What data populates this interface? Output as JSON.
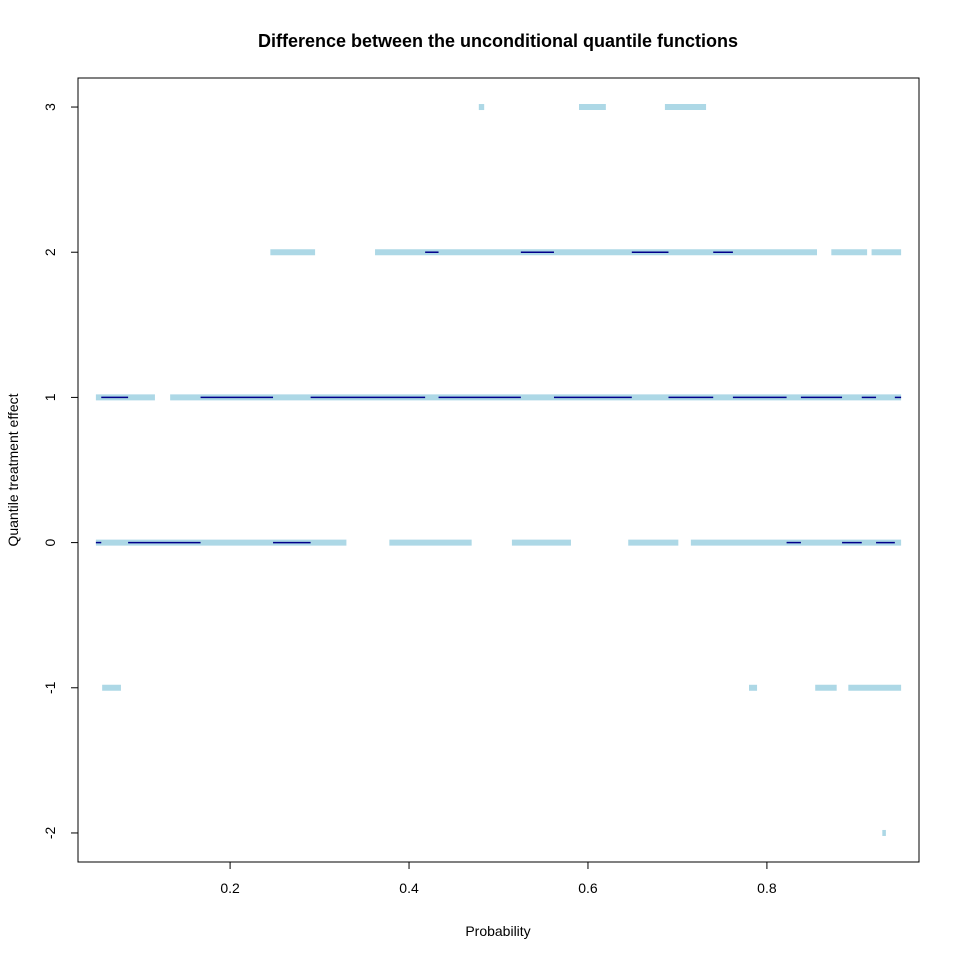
{
  "chart_data": {
    "type": "line",
    "title": "Difference between the unconditional quantile functions",
    "xlabel": "Probability",
    "ylabel": "Quantile treatment effect",
    "xlim": [
      0.03,
      0.97
    ],
    "ylim": [
      -2.2,
      3.2
    ],
    "x_ticks": [
      "0.2",
      "0.4",
      "0.6",
      "0.8"
    ],
    "x_tick_values": [
      0.2,
      0.4,
      0.6,
      0.8
    ],
    "y_ticks": [
      "-2",
      "-1",
      "0",
      "1",
      "2",
      "3"
    ],
    "y_tick_values": [
      -2,
      -1,
      0,
      1,
      2,
      3
    ],
    "grid": false,
    "colors": {
      "band": "#add8e6",
      "estimate": "#00008b",
      "axis": "#000000"
    },
    "band_segments": [
      {
        "y": 3,
        "x0": 0.478,
        "x1": 0.484
      },
      {
        "y": 3,
        "x0": 0.59,
        "x1": 0.62
      },
      {
        "y": 3,
        "x0": 0.686,
        "x1": 0.732
      },
      {
        "y": 2,
        "x0": 0.245,
        "x1": 0.295
      },
      {
        "y": 2,
        "x0": 0.362,
        "x1": 0.856
      },
      {
        "y": 2,
        "x0": 0.872,
        "x1": 0.912
      },
      {
        "y": 2,
        "x0": 0.917,
        "x1": 0.95
      },
      {
        "y": 1,
        "x0": 0.05,
        "x1": 0.116
      },
      {
        "y": 1,
        "x0": 0.133,
        "x1": 0.95
      },
      {
        "y": 0,
        "x0": 0.05,
        "x1": 0.33
      },
      {
        "y": 0,
        "x0": 0.378,
        "x1": 0.47
      },
      {
        "y": 0,
        "x0": 0.515,
        "x1": 0.581
      },
      {
        "y": 0,
        "x0": 0.645,
        "x1": 0.701
      },
      {
        "y": 0,
        "x0": 0.715,
        "x1": 0.95
      },
      {
        "y": -1,
        "x0": 0.057,
        "x1": 0.078
      },
      {
        "y": -1,
        "x0": 0.78,
        "x1": 0.789
      },
      {
        "y": -1,
        "x0": 0.854,
        "x1": 0.878
      },
      {
        "y": -1,
        "x0": 0.891,
        "x1": 0.95
      },
      {
        "y": -2,
        "x0": 0.929,
        "x1": 0.933
      }
    ],
    "estimate_segments": [
      {
        "y": 2,
        "x0": 0.418,
        "x1": 0.433
      },
      {
        "y": 2,
        "x0": 0.525,
        "x1": 0.562
      },
      {
        "y": 2,
        "x0": 0.649,
        "x1": 0.69
      },
      {
        "y": 2,
        "x0": 0.74,
        "x1": 0.762
      },
      {
        "y": 1,
        "x0": 0.056,
        "x1": 0.086
      },
      {
        "y": 1,
        "x0": 0.167,
        "x1": 0.248
      },
      {
        "y": 1,
        "x0": 0.29,
        "x1": 0.418
      },
      {
        "y": 1,
        "x0": 0.433,
        "x1": 0.525
      },
      {
        "y": 1,
        "x0": 0.562,
        "x1": 0.649
      },
      {
        "y": 1,
        "x0": 0.69,
        "x1": 0.74
      },
      {
        "y": 1,
        "x0": 0.762,
        "x1": 0.822
      },
      {
        "y": 1,
        "x0": 0.838,
        "x1": 0.884
      },
      {
        "y": 1,
        "x0": 0.906,
        "x1": 0.922
      },
      {
        "y": 1,
        "x0": 0.943,
        "x1": 0.95
      },
      {
        "y": 0,
        "x0": 0.05,
        "x1": 0.056
      },
      {
        "y": 0,
        "x0": 0.086,
        "x1": 0.167
      },
      {
        "y": 0,
        "x0": 0.248,
        "x1": 0.29
      },
      {
        "y": 0,
        "x0": 0.822,
        "x1": 0.838
      },
      {
        "y": 0,
        "x0": 0.884,
        "x1": 0.906
      },
      {
        "y": 0,
        "x0": 0.922,
        "x1": 0.943
      }
    ]
  }
}
